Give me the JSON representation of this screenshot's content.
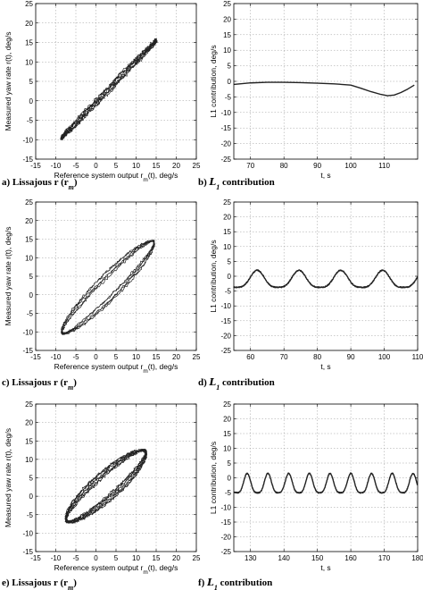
{
  "chart_data": [
    {
      "type": "scatter",
      "panel_caption": "a) Lissajous r (r",
      "caption_sub": "m",
      "caption_tail": ")",
      "xlabel": "Reference system output r",
      "xlabel_sub": "m",
      "xlabel_tail": "(t), deg/s",
      "ylabel": "Measured yaw rate r(t), deg/s",
      "xlim": [
        -15,
        25
      ],
      "ylim": [
        -15,
        25
      ],
      "xticks": [
        -15,
        -10,
        -5,
        0,
        5,
        10,
        15,
        20,
        25
      ],
      "yticks": [
        -15,
        -10,
        -5,
        0,
        5,
        10,
        15,
        20,
        25
      ],
      "grid": true,
      "series": [
        {
          "kind": "lissajous",
          "x_range": [
            -8.5,
            15
          ],
          "y_range": [
            -9.5,
            15.5
          ],
          "loop_width": 0.8,
          "noise": 0.7,
          "turns": 4
        }
      ]
    },
    {
      "type": "line",
      "panel_caption": "b) ",
      "caption_script": "L",
      "caption_sub": "1",
      "caption_tail": " contribution",
      "xlabel": "t, s",
      "ylabel": "L1 contribution, deg/s",
      "xlim": [
        65,
        120
      ],
      "ylim": [
        -25,
        25
      ],
      "xticks": [
        70,
        80,
        90,
        100,
        110
      ],
      "yticks": [
        -25,
        -20,
        -15,
        -10,
        -5,
        0,
        5,
        10,
        15,
        20,
        25
      ],
      "grid": true,
      "series": [
        {
          "x": [
            65,
            70,
            75,
            80,
            85,
            90,
            95,
            100,
            103,
            106,
            109,
            111,
            113,
            115,
            117,
            119
          ],
          "y": [
            -1,
            -0.5,
            -0.3,
            -0.3,
            -0.4,
            -0.6,
            -0.8,
            -1.2,
            -2.2,
            -3.3,
            -4.2,
            -4.6,
            -4.4,
            -3.6,
            -2.5,
            -1.2
          ]
        }
      ]
    },
    {
      "type": "scatter",
      "panel_caption": "c) Lissajous r (r",
      "caption_sub": "m",
      "caption_tail": ")",
      "xlabel": "Reference system output r",
      "xlabel_sub": "m",
      "xlabel_tail": "(t), deg/s",
      "ylabel": "Measured yaw rate r(t), deg/s",
      "xlim": [
        -15,
        25
      ],
      "ylim": [
        -15,
        25
      ],
      "xticks": [
        -15,
        -10,
        -5,
        0,
        5,
        10,
        15,
        20,
        25
      ],
      "yticks": [
        -15,
        -10,
        -5,
        0,
        5,
        10,
        15,
        20,
        25
      ],
      "grid": true,
      "series": [
        {
          "kind": "lissajous",
          "x_range": [
            -8.5,
            14.5
          ],
          "y_range": [
            -10.5,
            14.5
          ],
          "loop_width": 5,
          "noise": 0.35,
          "turns": 5
        }
      ]
    },
    {
      "type": "line",
      "panel_caption": "d) ",
      "caption_script": "L",
      "caption_sub": "1",
      "caption_tail": " contribution",
      "xlabel": "t, s",
      "ylabel": "L1 contribution, deg/s",
      "xlim": [
        55,
        110
      ],
      "ylim": [
        -25,
        25
      ],
      "xticks": [
        60,
        70,
        80,
        90,
        100,
        110
      ],
      "yticks": [
        -25,
        -20,
        -15,
        -10,
        -5,
        0,
        5,
        10,
        15,
        20,
        25
      ],
      "grid": true,
      "series": [
        {
          "kind": "periodic",
          "t_start": 55,
          "t_end": 110,
          "period": 12.5,
          "peak_t": 62,
          "max": 2,
          "min": -5
        }
      ]
    },
    {
      "type": "scatter",
      "panel_caption": "e) Lissajous r (r",
      "caption_sub": "m",
      "caption_tail": ")",
      "xlabel": "Reference system output r",
      "xlabel_sub": "m",
      "xlabel_tail": "(t), deg/s",
      "ylabel": "Measured yaw rate r(t), deg/s",
      "xlim": [
        -15,
        25
      ],
      "ylim": [
        -15,
        25
      ],
      "xticks": [
        -15,
        -10,
        -5,
        0,
        5,
        10,
        15,
        20,
        25
      ],
      "yticks": [
        -15,
        -10,
        -5,
        0,
        5,
        10,
        15,
        20,
        25
      ],
      "grid": true,
      "series": [
        {
          "kind": "lissajous",
          "x_range": [
            -7.5,
            12.5
          ],
          "y_range": [
            -7,
            12.5
          ],
          "loop_width": 7,
          "noise": 0.45,
          "turns": 8
        }
      ]
    },
    {
      "type": "line",
      "panel_caption": "f) ",
      "caption_script": "L",
      "caption_sub": "1",
      "caption_tail": " contribution",
      "xlabel": "t, s",
      "ylabel": "L1 contribution, deg/s",
      "xlim": [
        125,
        180
      ],
      "ylim": [
        -25,
        25
      ],
      "xticks": [
        130,
        140,
        150,
        160,
        170,
        180
      ],
      "yticks": [
        -25,
        -20,
        -15,
        -10,
        -5,
        0,
        5,
        10,
        15,
        20,
        25
      ],
      "grid": true,
      "series": [
        {
          "kind": "periodic",
          "t_start": 125,
          "t_end": 180,
          "period": 6.2,
          "peak_t": 129,
          "max": 1.5,
          "min": -6.5
        }
      ]
    }
  ]
}
